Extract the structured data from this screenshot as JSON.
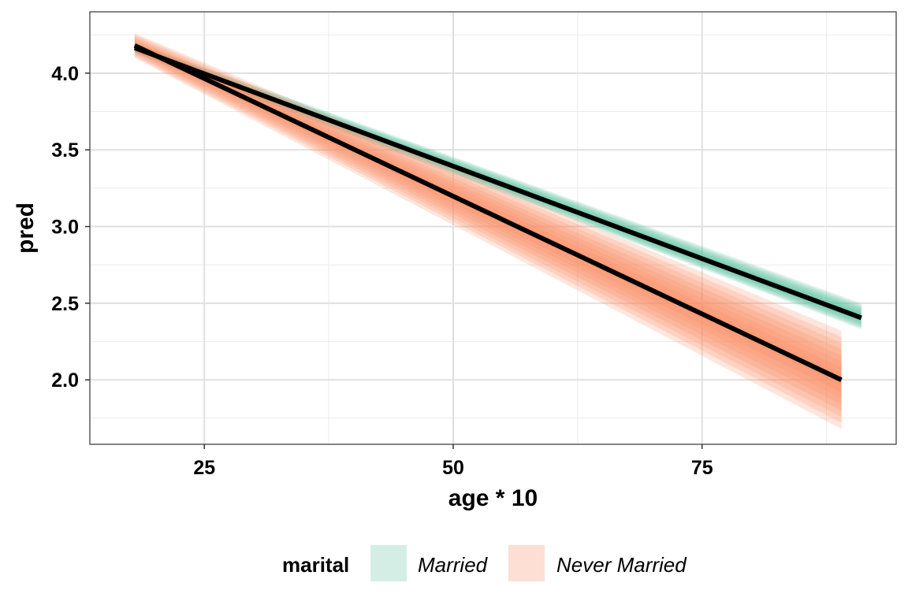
{
  "chart_data": {
    "type": "line",
    "xlabel": "age * 10",
    "ylabel": "pred",
    "xlim": [
      13.5,
      94.5
    ],
    "ylim": [
      1.58,
      4.4
    ],
    "x_ticks": [
      25,
      50,
      75
    ],
    "x_tick_labels": [
      "25",
      "50",
      "75"
    ],
    "y_ticks": [
      2.0,
      2.5,
      3.0,
      3.5,
      4.0
    ],
    "y_tick_labels": [
      "2.0",
      "2.5",
      "3.0",
      "3.5",
      "4.0"
    ],
    "grid": true,
    "legend": {
      "title": "marital",
      "position": "bottom"
    },
    "series": [
      {
        "name": "Married",
        "color": "#66c2a5",
        "x": [
          18,
          91
        ],
        "y": [
          4.165,
          2.405
        ],
        "ribbon_lower": [
          4.13,
          2.33
        ],
        "ribbon_upper": [
          4.2,
          2.5
        ]
      },
      {
        "name": "Never Married",
        "color": "#fc8d62",
        "x": [
          18,
          89
        ],
        "y": [
          4.18,
          2.0
        ],
        "ribbon_lower": [
          4.1,
          1.68
        ],
        "ribbon_upper": [
          4.26,
          2.32
        ]
      }
    ],
    "mean_line_color": "#000000"
  }
}
